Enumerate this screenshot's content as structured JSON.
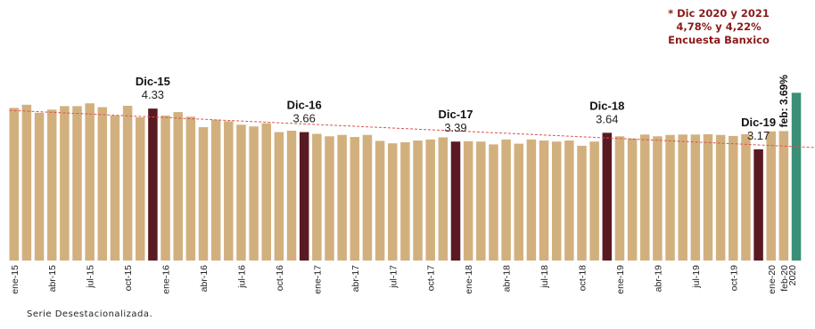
{
  "note": {
    "line1": "* Dic 2020 y 2021",
    "line2": "4,78% y 4,22%",
    "line3": "Encuesta Banxico"
  },
  "source": "Serie Desestacionalizada.",
  "colors": {
    "regular": "#d2b07e",
    "december": "#5a1a22",
    "forecast": "#3a8f76",
    "trend": "#d9534f"
  },
  "chart_data": {
    "type": "bar",
    "ylim": [
      0,
      5.6
    ],
    "grid": false,
    "categories": [
      "ene-15",
      "feb-15",
      "mar-15",
      "abr-15",
      "may-15",
      "jun-15",
      "jul-15",
      "ago-15",
      "sep-15",
      "oct-15",
      "nov-15",
      "dic-15",
      "ene-16",
      "feb-16",
      "mar-16",
      "abr-16",
      "may-16",
      "jun-16",
      "jul-16",
      "ago-16",
      "sep-16",
      "oct-16",
      "nov-16",
      "dic-16",
      "ene-17",
      "feb-17",
      "mar-17",
      "abr-17",
      "may-17",
      "jun-17",
      "jul-17",
      "ago-17",
      "sep-17",
      "oct-17",
      "nov-17",
      "dic-17",
      "ene-18",
      "feb-18",
      "mar-18",
      "abr-18",
      "may-18",
      "jun-18",
      "jul-18",
      "ago-18",
      "sep-18",
      "oct-18",
      "nov-18",
      "dic-18",
      "ene-19",
      "feb-19",
      "mar-19",
      "abr-19",
      "may-19",
      "jun-19",
      "jul-19",
      "ago-19",
      "sep-19",
      "oct-19",
      "nov-19",
      "dic-19",
      "ene-20",
      "feb-20"
    ],
    "values": [
      4.35,
      4.44,
      4.21,
      4.3,
      4.4,
      4.4,
      4.48,
      4.37,
      4.13,
      4.41,
      4.08,
      4.33,
      4.13,
      4.23,
      4.1,
      3.8,
      4.01,
      3.97,
      3.87,
      3.82,
      3.91,
      3.66,
      3.7,
      3.66,
      3.61,
      3.54,
      3.58,
      3.52,
      3.58,
      3.41,
      3.34,
      3.37,
      3.42,
      3.45,
      3.51,
      3.39,
      3.4,
      3.39,
      3.31,
      3.45,
      3.33,
      3.45,
      3.42,
      3.39,
      3.42,
      3.27,
      3.39,
      3.64,
      3.54,
      3.48,
      3.59,
      3.54,
      3.58,
      3.59,
      3.59,
      3.6,
      3.58,
      3.55,
      3.6,
      3.17,
      3.68,
      3.69
    ],
    "tick_labels": [
      "ene-15",
      "abr-15",
      "jul-15",
      "oct-15",
      "ene-16",
      "abr-16",
      "jul-16",
      "oct-16",
      "ene-17",
      "abr-17",
      "jul-17",
      "oct-17",
      "ene-18",
      "abr-18",
      "jul-18",
      "oct-18",
      "ene-19",
      "abr-19",
      "jul-19",
      "oct-19",
      "ene-20",
      "feb-20"
    ],
    "extra_tick_label": "2020",
    "highlights": [
      {
        "category": "dic-15",
        "label": "Dic-15",
        "value_text": "4.33"
      },
      {
        "category": "dic-16",
        "label": "Dic-16",
        "value_text": "3.66"
      },
      {
        "category": "dic-17",
        "label": "Dic-17",
        "value_text": "3.39"
      },
      {
        "category": "dic-18",
        "label": "Dic-18",
        "value_text": "3.64"
      },
      {
        "category": "dic-19",
        "label": "Dic-19",
        "value_text": "3.17"
      }
    ],
    "latest_label": "feb: 3.69%",
    "forecast_bar": {
      "value": 4.78
    },
    "trendline": {
      "start": 4.28,
      "end": 3.22
    }
  }
}
